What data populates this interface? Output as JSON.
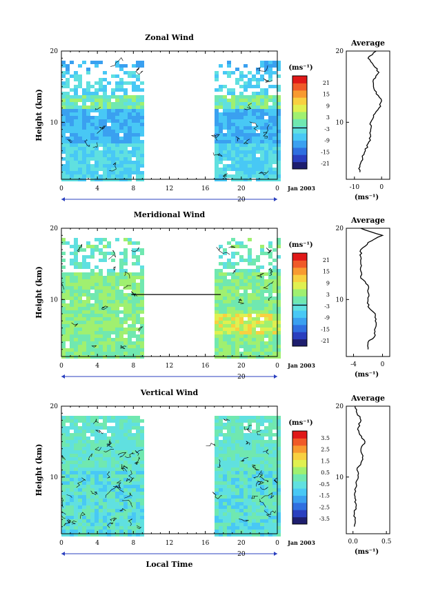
{
  "chart_data": [
    {
      "type": "heatmap",
      "title": "Zonal Wind",
      "ylabel": "Height (km)",
      "yticks": [
        "20",
        "10"
      ],
      "xticks": [
        "0",
        "4",
        "8",
        "12",
        "16",
        "20",
        "0"
      ],
      "day_label": "20",
      "date_label": "Jan 2003",
      "xlim": [
        0,
        24
      ],
      "ylim": [
        2,
        20
      ],
      "data_gap_hours": [
        9.3,
        16.8
      ],
      "colorbar": {
        "unit": "(ms⁻¹)",
        "labels": [
          "21",
          "15",
          "9",
          "3",
          "-3",
          "-9",
          "-15",
          "-21"
        ],
        "zero_line": true
      },
      "average": {
        "title": "Average",
        "xlabel": "(ms⁻¹)",
        "xticks": [
          "-10",
          "0"
        ],
        "xlim": [
          -13,
          3
        ],
        "yticks": [
          "20",
          "10"
        ],
        "profile": [
          [
            -8,
            3
          ],
          [
            -8,
            4
          ],
          [
            -7,
            5
          ],
          [
            -6,
            6
          ],
          [
            -5,
            7
          ],
          [
            -4,
            8
          ],
          [
            -4,
            9
          ],
          [
            -4,
            10
          ],
          [
            -3,
            11
          ],
          [
            -1,
            12
          ],
          [
            0,
            13
          ],
          [
            -2,
            14
          ],
          [
            -3,
            15
          ],
          [
            -3,
            16
          ],
          [
            -1,
            17
          ],
          [
            -3,
            18
          ],
          [
            -5,
            19
          ],
          [
            -2,
            20
          ]
        ]
      }
    },
    {
      "type": "heatmap",
      "title": "Meridional Wind",
      "ylabel": "Height (km)",
      "yticks": [
        "20",
        "10"
      ],
      "xticks": [
        "0",
        "4",
        "8",
        "12",
        "16",
        "20",
        "0"
      ],
      "day_label": "20",
      "date_label": "Jan 2003",
      "xlim": [
        0,
        24
      ],
      "ylim": [
        2,
        20
      ],
      "data_gap_hours": [
        9.3,
        16.8
      ],
      "colorbar": {
        "unit": "(ms⁻¹)",
        "labels": [
          "21",
          "15",
          "9",
          "3",
          "-3",
          "-9",
          "-15",
          "-21"
        ],
        "zero_line": true
      },
      "average": {
        "title": "Average",
        "xlabel": "(ms⁻¹)",
        "xticks": [
          "-4",
          "0"
        ],
        "xlim": [
          -5,
          1
        ],
        "yticks": [
          "20",
          "10"
        ],
        "profile": [
          [
            -2,
            3
          ],
          [
            -2,
            4
          ],
          [
            -1,
            5
          ],
          [
            -1,
            6
          ],
          [
            -1,
            7
          ],
          [
            -1,
            8
          ],
          [
            -2,
            9
          ],
          [
            -2,
            10
          ],
          [
            -2,
            11
          ],
          [
            -2,
            12
          ],
          [
            -3,
            13
          ],
          [
            -3,
            14
          ],
          [
            -3,
            15
          ],
          [
            -3,
            16
          ],
          [
            -3,
            17
          ],
          [
            -2,
            18
          ],
          [
            0,
            19
          ],
          [
            -3,
            20
          ]
        ]
      }
    },
    {
      "type": "heatmap",
      "title": "Vertical Wind",
      "ylabel": "Height (km)",
      "yticks": [
        "20",
        "10"
      ],
      "xticks": [
        "0",
        "4",
        "8",
        "12",
        "16",
        "20",
        "0"
      ],
      "day_label": "20",
      "date_label": "Jan 2003",
      "xlabel": "Local Time",
      "xlim": [
        0,
        24
      ],
      "ylim": [
        2,
        20
      ],
      "data_gap_hours": [
        9.3,
        16.8
      ],
      "colorbar": {
        "unit": "(ms⁻¹)",
        "labels": [
          "3.5",
          "2.5",
          "1.5",
          "0.5",
          "-0.5",
          "-1.5",
          "-2.5",
          "-3.5"
        ],
        "zero_line": false
      },
      "average": {
        "title": "Average",
        "xlabel": "(ms⁻¹)",
        "xticks": [
          "0.0",
          "0.5"
        ],
        "xlim": [
          -0.1,
          0.55
        ],
        "yticks": [
          "20",
          "10"
        ],
        "profile": [
          [
            0.02,
            3
          ],
          [
            0.03,
            4
          ],
          [
            0.02,
            5
          ],
          [
            0.05,
            6
          ],
          [
            0.03,
            7
          ],
          [
            0.04,
            8
          ],
          [
            0.05,
            9
          ],
          [
            0.08,
            10
          ],
          [
            0.06,
            11
          ],
          [
            0.12,
            12
          ],
          [
            0.15,
            13
          ],
          [
            0.12,
            14
          ],
          [
            0.18,
            15
          ],
          [
            0.1,
            16
          ],
          [
            0.08,
            17
          ],
          [
            0.12,
            18
          ],
          [
            0.06,
            19
          ],
          [
            0.03,
            20
          ]
        ]
      }
    }
  ],
  "colormap": [
    "#1e1e6e",
    "#2a3fbf",
    "#2f6fe0",
    "#3aa0f0",
    "#48c8f5",
    "#60e0e0",
    "#70e8b0",
    "#a0f070",
    "#e0f050",
    "#f8d040",
    "#f89a30",
    "#f05a28",
    "#e01818"
  ]
}
